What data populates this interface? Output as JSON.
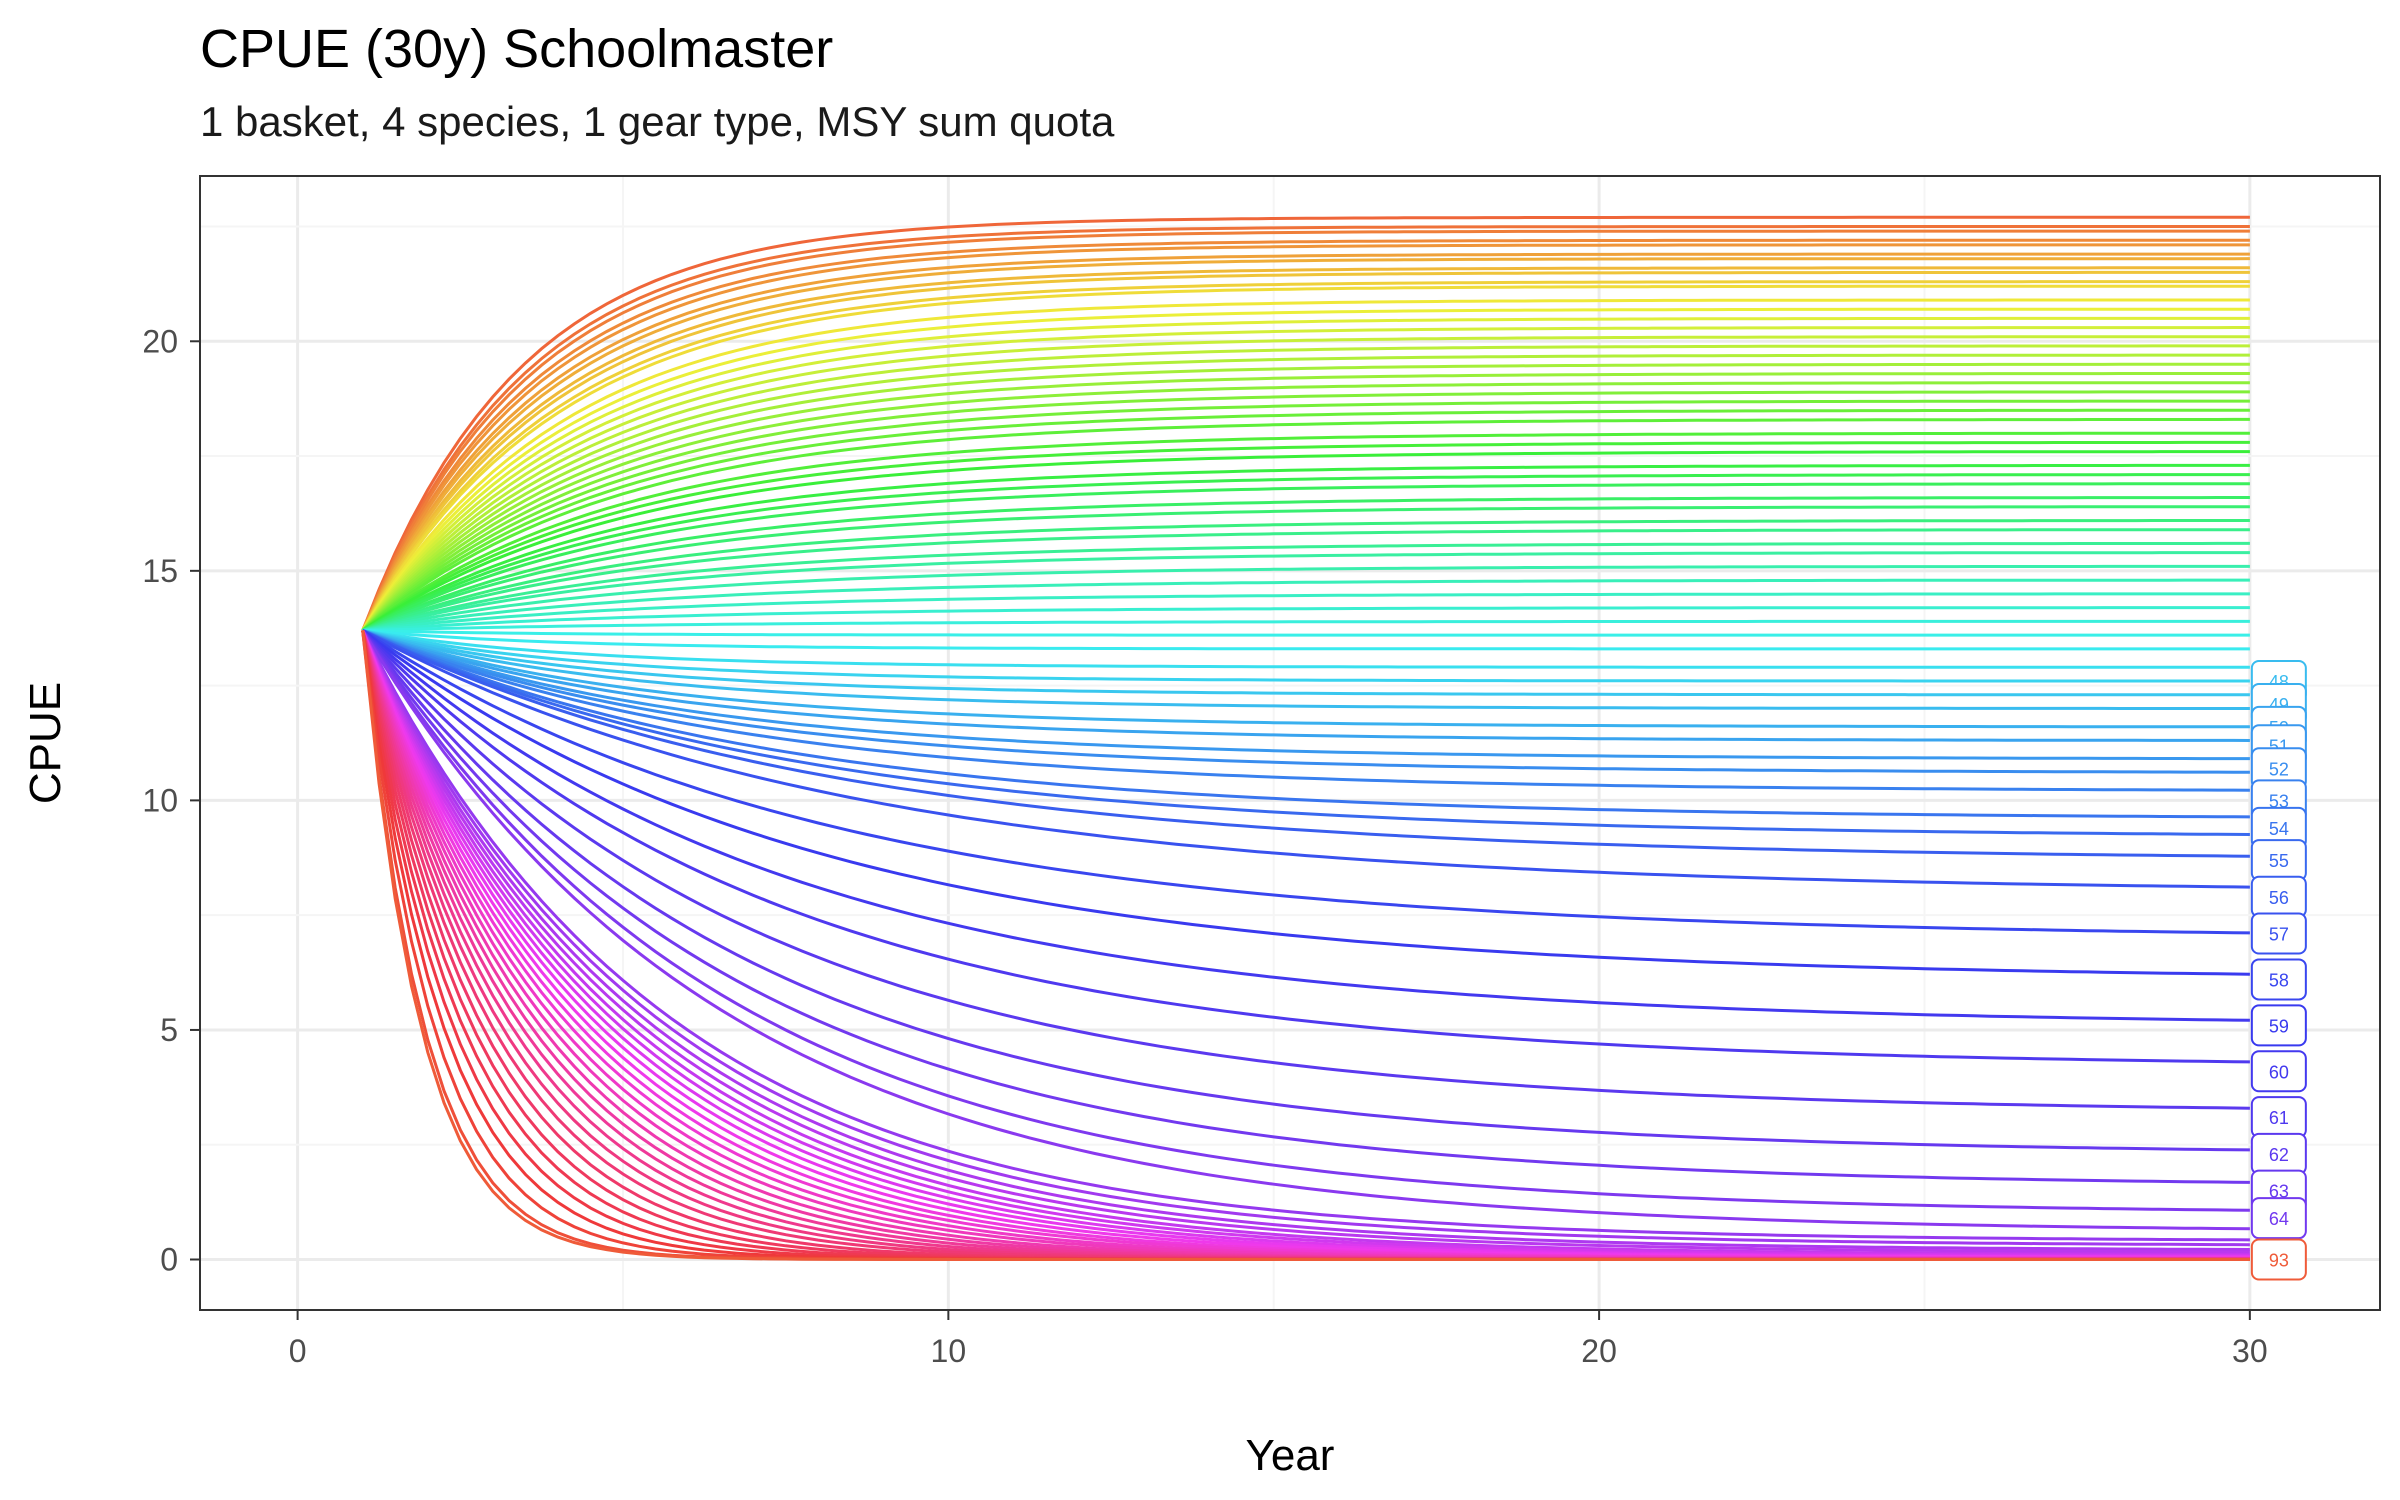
{
  "chart_data": {
    "type": "line",
    "title": "CPUE (30y) Schoolmaster",
    "subtitle": "1 basket, 4 species, 1 gear type, MSY sum quota",
    "xlabel": "Year",
    "ylabel": "CPUE",
    "xlim": [
      -1.5,
      32
    ],
    "ylim": [
      -1.1,
      23.6
    ],
    "x_ticks": [
      0,
      10,
      20,
      30
    ],
    "y_ticks": [
      0,
      5,
      10,
      15,
      20
    ],
    "x_tick_labels": [
      "0",
      "10",
      "20",
      "30"
    ],
    "y_tick_labels": [
      "0",
      "5",
      "10",
      "15",
      "20"
    ],
    "grid": true,
    "legend": "none",
    "series_count": 93,
    "start": {
      "x": 1,
      "y": 13.7
    },
    "x": [
      1,
      30
    ],
    "series_final_cpue": [
      22.7,
      22.5,
      22.4,
      22.2,
      22.1,
      21.9,
      21.8,
      21.6,
      21.5,
      21.3,
      21.2,
      20.9,
      20.7,
      20.5,
      20.3,
      20.1,
      19.9,
      19.7,
      19.5,
      19.3,
      19.1,
      18.9,
      18.7,
      18.5,
      18.3,
      18.0,
      17.8,
      17.6,
      17.3,
      17.1,
      16.9,
      16.6,
      16.4,
      16.1,
      15.9,
      15.6,
      15.4,
      15.1,
      14.8,
      14.5,
      14.2,
      13.9,
      13.6,
      13.3,
      12.9,
      12.6,
      12.3,
      12.0,
      11.6,
      11.3,
      10.9,
      10.6,
      10.2,
      9.6,
      9.2,
      8.7,
      8.0,
      7.0,
      6.1,
      5.1,
      4.2,
      3.2,
      2.3,
      1.6,
      1.0,
      0.6,
      0.4,
      0.3,
      0.2,
      0.15,
      0.1,
      0.08,
      0.06,
      0.05,
      0.04,
      0.03,
      0.03,
      0.02,
      0.02,
      0.01,
      0.01,
      0.01,
      0.01,
      0.01,
      0.01,
      0.0,
      0.0,
      0.0,
      0.0,
      0.0,
      0.0,
      0.0,
      0.0
    ],
    "visible_end_labels": [
      {
        "label": "48",
        "y": 12.6
      },
      {
        "label": "49",
        "y": 12.1
      },
      {
        "label": "50",
        "y": 11.6
      },
      {
        "label": "51",
        "y": 11.2
      },
      {
        "label": "52",
        "y": 10.7
      },
      {
        "label": "53",
        "y": 10.0
      },
      {
        "label": "54",
        "y": 9.4
      },
      {
        "label": "55",
        "y": 8.7
      },
      {
        "label": "56",
        "y": 7.9
      },
      {
        "label": "57",
        "y": 7.1
      },
      {
        "label": "58",
        "y": 6.1
      },
      {
        "label": "59",
        "y": 5.1
      },
      {
        "label": "60",
        "y": 4.1
      },
      {
        "label": "61",
        "y": 3.1
      },
      {
        "label": "62",
        "y": 2.3
      },
      {
        "label": "63",
        "y": 1.5
      },
      {
        "label": "64",
        "y": 0.9
      },
      {
        "label": "93",
        "y": 0.0
      }
    ],
    "colors": {
      "palette": "hue",
      "panel_border": "#333333",
      "grid_major": "#ebebeb",
      "grid_minor": "#f5f5f5"
    }
  }
}
